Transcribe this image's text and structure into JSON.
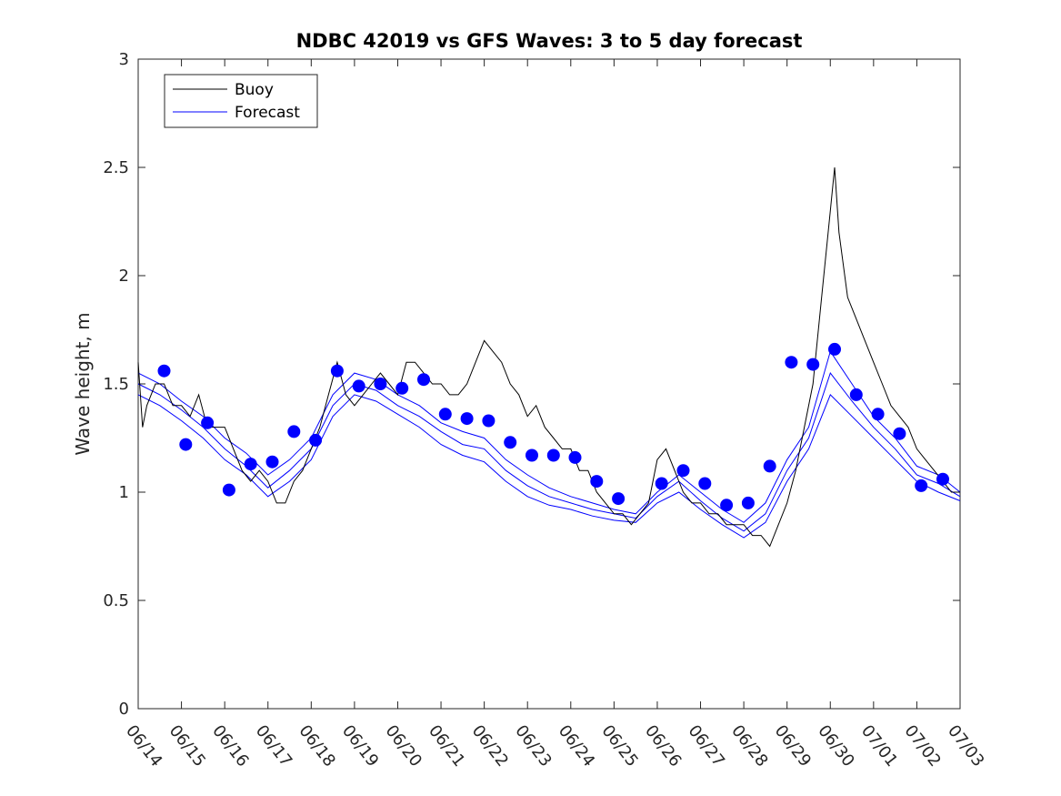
{
  "chart_data": {
    "type": "line",
    "title": "NDBC 42019 vs GFS Waves: 3 to 5 day forecast",
    "xlabel": "",
    "ylabel": "Wave height, m",
    "ylim": [
      0,
      3
    ],
    "yticks": [
      "0",
      "0.5",
      "1",
      "1.5",
      "2",
      "2.5",
      "3"
    ],
    "xticks": [
      "06/14",
      "06/15",
      "06/16",
      "06/17",
      "06/18",
      "06/19",
      "06/20",
      "06/21",
      "06/22",
      "06/23",
      "06/24",
      "06/25",
      "06/26",
      "06/27",
      "06/28",
      "06/29",
      "06/30",
      "07/01",
      "07/02",
      "07/03"
    ],
    "x_unit": "days since 06/14 00:00",
    "xlim": [
      0,
      19
    ],
    "legend": {
      "position": "top-left",
      "entries": [
        "Buoy",
        "Forecast"
      ]
    },
    "colors": {
      "buoy": "#000000",
      "forecast": "#0000ff"
    },
    "buoy": [
      [
        0,
        1.6
      ],
      [
        0.1,
        1.3
      ],
      [
        0.2,
        1.4
      ],
      [
        0.4,
        1.5
      ],
      [
        0.6,
        1.5
      ],
      [
        0.8,
        1.4
      ],
      [
        1.0,
        1.4
      ],
      [
        1.2,
        1.35
      ],
      [
        1.4,
        1.45
      ],
      [
        1.6,
        1.3
      ],
      [
        1.8,
        1.3
      ],
      [
        2.0,
        1.3
      ],
      [
        2.2,
        1.2
      ],
      [
        2.4,
        1.1
      ],
      [
        2.6,
        1.05
      ],
      [
        2.8,
        1.1
      ],
      [
        3.0,
        1.05
      ],
      [
        3.2,
        0.95
      ],
      [
        3.4,
        0.95
      ],
      [
        3.6,
        1.05
      ],
      [
        3.8,
        1.1
      ],
      [
        4.0,
        1.2
      ],
      [
        4.2,
        1.3
      ],
      [
        4.4,
        1.45
      ],
      [
        4.6,
        1.6
      ],
      [
        4.8,
        1.45
      ],
      [
        5.0,
        1.4
      ],
      [
        5.2,
        1.45
      ],
      [
        5.4,
        1.5
      ],
      [
        5.6,
        1.55
      ],
      [
        5.8,
        1.5
      ],
      [
        6.0,
        1.45
      ],
      [
        6.2,
        1.6
      ],
      [
        6.4,
        1.6
      ],
      [
        6.6,
        1.55
      ],
      [
        6.8,
        1.5
      ],
      [
        7.0,
        1.5
      ],
      [
        7.2,
        1.45
      ],
      [
        7.4,
        1.45
      ],
      [
        7.6,
        1.5
      ],
      [
        7.8,
        1.6
      ],
      [
        8.0,
        1.7
      ],
      [
        8.2,
        1.65
      ],
      [
        8.4,
        1.6
      ],
      [
        8.6,
        1.5
      ],
      [
        8.8,
        1.45
      ],
      [
        9.0,
        1.35
      ],
      [
        9.2,
        1.4
      ],
      [
        9.4,
        1.3
      ],
      [
        9.6,
        1.25
      ],
      [
        9.8,
        1.2
      ],
      [
        10.0,
        1.2
      ],
      [
        10.2,
        1.1
      ],
      [
        10.4,
        1.1
      ],
      [
        10.6,
        1.0
      ],
      [
        10.8,
        0.95
      ],
      [
        11.0,
        0.9
      ],
      [
        11.2,
        0.9
      ],
      [
        11.4,
        0.85
      ],
      [
        11.6,
        0.9
      ],
      [
        11.8,
        0.95
      ],
      [
        12.0,
        1.15
      ],
      [
        12.2,
        1.2
      ],
      [
        12.4,
        1.1
      ],
      [
        12.6,
        1.0
      ],
      [
        12.8,
        0.95
      ],
      [
        13.0,
        0.95
      ],
      [
        13.2,
        0.9
      ],
      [
        13.4,
        0.9
      ],
      [
        13.6,
        0.85
      ],
      [
        13.8,
        0.85
      ],
      [
        14.0,
        0.85
      ],
      [
        14.2,
        0.8
      ],
      [
        14.4,
        0.8
      ],
      [
        14.6,
        0.75
      ],
      [
        14.8,
        0.85
      ],
      [
        15.0,
        0.95
      ],
      [
        15.2,
        1.1
      ],
      [
        15.4,
        1.3
      ],
      [
        15.6,
        1.5
      ],
      [
        15.8,
        1.9
      ],
      [
        16.0,
        2.3
      ],
      [
        16.1,
        2.5
      ],
      [
        16.2,
        2.2
      ],
      [
        16.4,
        1.9
      ],
      [
        16.6,
        1.8
      ],
      [
        16.8,
        1.7
      ],
      [
        17.0,
        1.6
      ],
      [
        17.2,
        1.5
      ],
      [
        17.4,
        1.4
      ],
      [
        17.6,
        1.35
      ],
      [
        17.8,
        1.3
      ],
      [
        18.0,
        1.2
      ],
      [
        18.2,
        1.15
      ],
      [
        18.4,
        1.1
      ],
      [
        18.6,
        1.05
      ],
      [
        18.8,
        1.0
      ],
      [
        19.0,
        1.0
      ]
    ],
    "forecast_dots": [
      [
        0.6,
        1.56
      ],
      [
        1.1,
        1.22
      ],
      [
        1.6,
        1.32
      ],
      [
        2.1,
        1.01
      ],
      [
        2.6,
        1.13
      ],
      [
        3.1,
        1.14
      ],
      [
        3.6,
        1.28
      ],
      [
        4.1,
        1.24
      ],
      [
        4.6,
        1.56
      ],
      [
        5.1,
        1.49
      ],
      [
        5.6,
        1.5
      ],
      [
        6.1,
        1.48
      ],
      [
        6.6,
        1.52
      ],
      [
        7.1,
        1.36
      ],
      [
        7.6,
        1.34
      ],
      [
        8.1,
        1.33
      ],
      [
        8.6,
        1.23
      ],
      [
        9.1,
        1.17
      ],
      [
        9.6,
        1.17
      ],
      [
        10.1,
        1.16
      ],
      [
        10.6,
        1.05
      ],
      [
        11.1,
        0.97
      ],
      [
        12.1,
        1.04
      ],
      [
        12.6,
        1.1
      ],
      [
        13.1,
        1.04
      ],
      [
        13.6,
        0.94
      ],
      [
        14.1,
        0.95
      ],
      [
        14.6,
        1.12
      ],
      [
        15.1,
        1.6
      ],
      [
        15.6,
        1.59
      ],
      [
        16.1,
        1.66
      ],
      [
        16.6,
        1.45
      ],
      [
        17.1,
        1.36
      ],
      [
        17.6,
        1.27
      ],
      [
        18.1,
        1.03
      ],
      [
        18.6,
        1.06
      ]
    ],
    "forecast_lines": [
      [
        [
          0,
          1.55
        ],
        [
          0.5,
          1.5
        ],
        [
          1.0,
          1.42
        ],
        [
          1.5,
          1.35
        ],
        [
          2.0,
          1.25
        ],
        [
          2.5,
          1.18
        ],
        [
          3.0,
          1.08
        ],
        [
          3.5,
          1.15
        ],
        [
          4.0,
          1.25
        ],
        [
          4.5,
          1.45
        ],
        [
          5.0,
          1.55
        ],
        [
          5.5,
          1.52
        ],
        [
          6.0,
          1.45
        ],
        [
          6.5,
          1.4
        ],
        [
          7.0,
          1.32
        ],
        [
          7.5,
          1.28
        ],
        [
          8.0,
          1.25
        ],
        [
          8.5,
          1.15
        ],
        [
          9.0,
          1.08
        ],
        [
          9.5,
          1.02
        ],
        [
          10.0,
          0.98
        ],
        [
          10.5,
          0.95
        ],
        [
          11.0,
          0.92
        ],
        [
          11.5,
          0.9
        ],
        [
          12.0,
          1.0
        ],
        [
          12.5,
          1.08
        ],
        [
          13.0,
          1.0
        ],
        [
          13.5,
          0.92
        ],
        [
          14.0,
          0.86
        ],
        [
          14.5,
          0.95
        ],
        [
          15.0,
          1.15
        ],
        [
          15.5,
          1.3
        ],
        [
          16.0,
          1.65
        ],
        [
          16.5,
          1.5
        ],
        [
          17.0,
          1.35
        ],
        [
          17.5,
          1.25
        ],
        [
          18.0,
          1.12
        ],
        [
          18.5,
          1.08
        ],
        [
          19.0,
          1.0
        ]
      ],
      [
        [
          0,
          1.5
        ],
        [
          0.5,
          1.45
        ],
        [
          1.0,
          1.38
        ],
        [
          1.5,
          1.3
        ],
        [
          2.0,
          1.2
        ],
        [
          2.5,
          1.12
        ],
        [
          3.0,
          1.02
        ],
        [
          3.5,
          1.1
        ],
        [
          4.0,
          1.2
        ],
        [
          4.5,
          1.4
        ],
        [
          5.0,
          1.5
        ],
        [
          5.5,
          1.47
        ],
        [
          6.0,
          1.4
        ],
        [
          6.5,
          1.35
        ],
        [
          7.0,
          1.28
        ],
        [
          7.5,
          1.22
        ],
        [
          8.0,
          1.2
        ],
        [
          8.5,
          1.1
        ],
        [
          9.0,
          1.03
        ],
        [
          9.5,
          0.98
        ],
        [
          10.0,
          0.95
        ],
        [
          10.5,
          0.92
        ],
        [
          11.0,
          0.9
        ],
        [
          11.5,
          0.88
        ],
        [
          12.0,
          0.98
        ],
        [
          12.5,
          1.05
        ],
        [
          13.0,
          0.96
        ],
        [
          13.5,
          0.88
        ],
        [
          14.0,
          0.82
        ],
        [
          14.5,
          0.9
        ],
        [
          15.0,
          1.1
        ],
        [
          15.5,
          1.25
        ],
        [
          16.0,
          1.55
        ],
        [
          16.5,
          1.42
        ],
        [
          17.0,
          1.3
        ],
        [
          17.5,
          1.2
        ],
        [
          18.0,
          1.08
        ],
        [
          18.5,
          1.04
        ],
        [
          19.0,
          0.98
        ]
      ],
      [
        [
          0,
          1.45
        ],
        [
          0.5,
          1.4
        ],
        [
          1.0,
          1.33
        ],
        [
          1.5,
          1.25
        ],
        [
          2.0,
          1.15
        ],
        [
          2.5,
          1.08
        ],
        [
          3.0,
          0.98
        ],
        [
          3.5,
          1.05
        ],
        [
          4.0,
          1.15
        ],
        [
          4.5,
          1.35
        ],
        [
          5.0,
          1.45
        ],
        [
          5.5,
          1.42
        ],
        [
          6.0,
          1.36
        ],
        [
          6.5,
          1.3
        ],
        [
          7.0,
          1.22
        ],
        [
          7.5,
          1.17
        ],
        [
          8.0,
          1.14
        ],
        [
          8.5,
          1.05
        ],
        [
          9.0,
          0.98
        ],
        [
          9.5,
          0.94
        ],
        [
          10.0,
          0.92
        ],
        [
          10.5,
          0.89
        ],
        [
          11.0,
          0.87
        ],
        [
          11.5,
          0.86
        ],
        [
          12.0,
          0.95
        ],
        [
          12.5,
          1.0
        ],
        [
          13.0,
          0.92
        ],
        [
          13.5,
          0.85
        ],
        [
          14.0,
          0.79
        ],
        [
          14.5,
          0.86
        ],
        [
          15.0,
          1.05
        ],
        [
          15.5,
          1.2
        ],
        [
          16.0,
          1.45
        ],
        [
          16.5,
          1.35
        ],
        [
          17.0,
          1.25
        ],
        [
          17.5,
          1.15
        ],
        [
          18.0,
          1.05
        ],
        [
          18.5,
          1.0
        ],
        [
          19.0,
          0.96
        ]
      ]
    ]
  }
}
